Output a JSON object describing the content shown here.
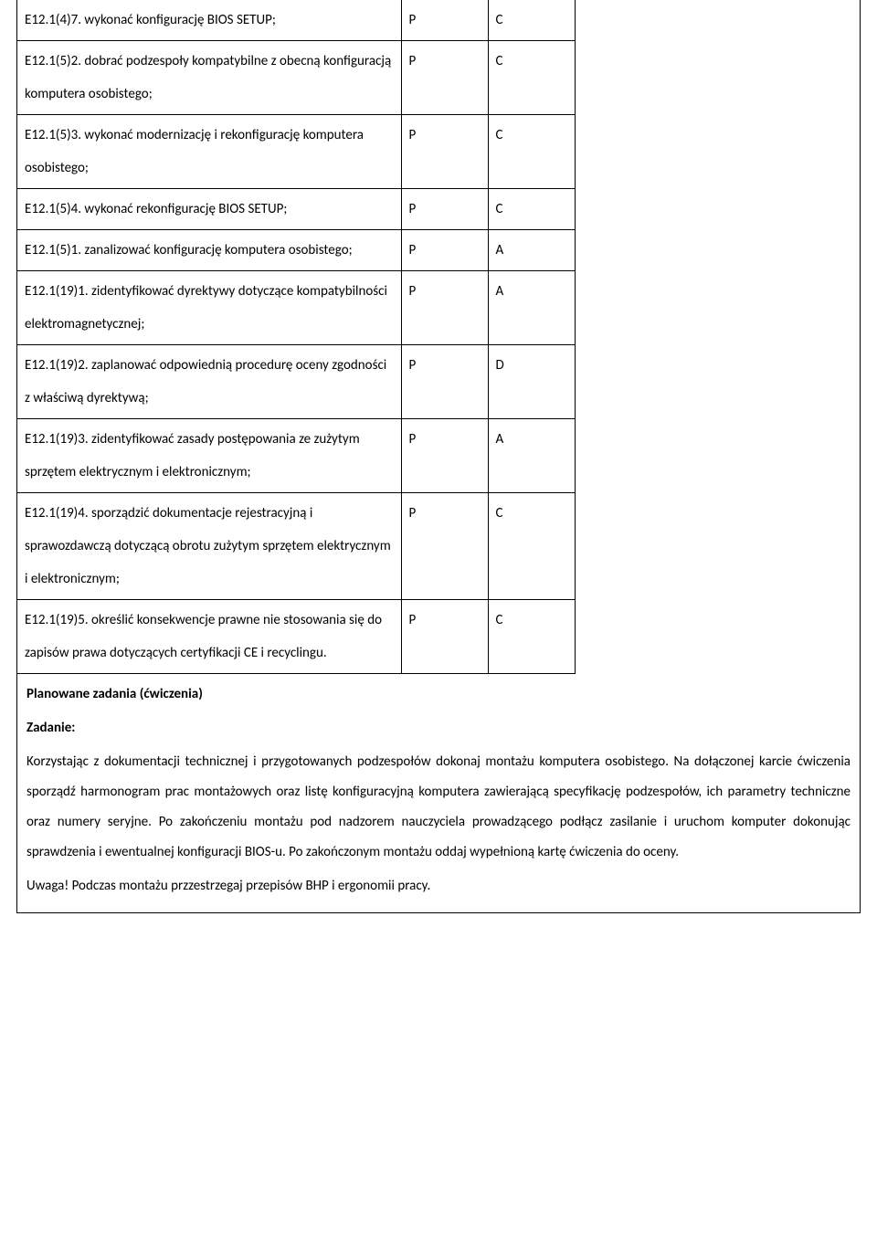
{
  "table": {
    "columns": [
      "desc",
      "p",
      "c"
    ],
    "col_widths": {
      "desc": 420,
      "p": 95,
      "c": 95
    },
    "rows": [
      {
        "desc": "E12.1(4)7. wykonać konfigurację BIOS SETUP;",
        "p": "P",
        "c": "C"
      },
      {
        "desc": "E12.1(5)2. dobrać podzespoły kompatybilne z obecną konfiguracją komputera osobistego;",
        "p": "P",
        "c": "C"
      },
      {
        "desc": "E12.1(5)3. wykonać modernizację i rekonfigurację komputera osobistego;",
        "p": "P",
        "c": "C"
      },
      {
        "desc": "E12.1(5)4. wykonać rekonfigurację BIOS SETUP;",
        "p": "P",
        "c": "C"
      },
      {
        "desc": "E12.1(5)1. zanalizować konfigurację komputera osobistego;",
        "p": "P",
        "c": "A"
      },
      {
        "desc": "E12.1(19)1. zidentyfikować dyrektywy dotyczące kompatybilności elektromagnetycznej;",
        "p": "P",
        "c": "A"
      },
      {
        "desc": "E12.1(19)2. zaplanować odpowiednią procedurę oceny zgodności z właściwą dyrektywą;",
        "p": "P",
        "c": "D"
      },
      {
        "desc": "E12.1(19)3. zidentyfikować zasady postępowania ze zużytym sprzętem elektrycznym i elektronicznym;",
        "p": "P",
        "c": "A"
      },
      {
        "desc": "E12.1(19)4. sporządzić dokumentacje rejestracyjną i sprawozdawczą dotyczącą obrotu zużytym sprzętem elektrycznym i elektronicznym;",
        "p": "P",
        "c": "C"
      },
      {
        "desc": "E12.1(19)5. określić konsekwencje prawne nie stosowania się do zapisów prawa dotyczących certyfikacji CE i recyclingu.",
        "p": "P",
        "c": "C"
      }
    ]
  },
  "section": {
    "title": "Planowane zadania (ćwiczenia)",
    "task_label": "Zadanie:",
    "task_body": "Korzystając z dokumentacji technicznej i przygotowanych podzespołów dokonaj montażu komputera osobistego. Na dołączonej karcie ćwiczenia sporządź harmonogram prac montażowych oraz listę konfiguracyjną komputera zawierającą specyfikację podzespołów, ich parametry techniczne oraz numery seryjne. Po zakończeniu montażu pod nadzorem nauczyciela prowadzącego podłącz zasilanie i uruchom komputer dokonując sprawdzenia i ewentualnej konfiguracji BIOS-u. Po zakończonym montażu oddaj wypełnioną kartę ćwiczenia do oceny.",
    "note": "Uwaga! Podczas montażu przzestrzegaj przepisów BHP i ergonomii pracy."
  },
  "style": {
    "font_family": "Calibri, Arial, sans-serif",
    "font_size_pt": 11,
    "text_color": "#000000",
    "border_color": "#000000",
    "background": "#ffffff",
    "line_height": 2.2
  }
}
